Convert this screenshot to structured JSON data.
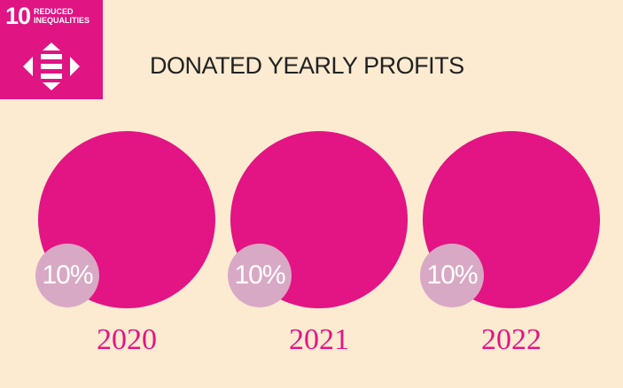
{
  "badge": {
    "number": "10",
    "label_line1": "REDUCED",
    "label_line2": "INEQUALITIES",
    "icon": "reduced-inequalities-icon",
    "color": "#e01483"
  },
  "headline": "DONATED YEARLY PROFITS",
  "accent_color": "#e31484",
  "percent_circle_color": "#d8a9c4",
  "background_color": "#fcebd0",
  "years": [
    {
      "year": "2020",
      "percent": "10%"
    },
    {
      "year": "2021",
      "percent": "10%"
    },
    {
      "year": "2022",
      "percent": "10%"
    }
  ]
}
